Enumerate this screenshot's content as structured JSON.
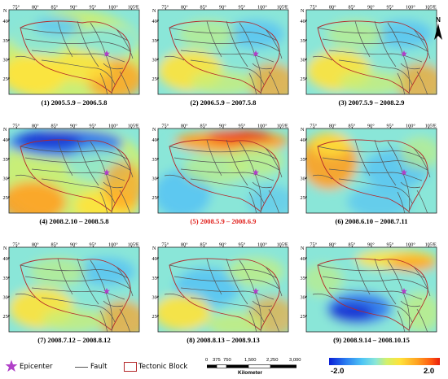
{
  "compass_letter": "N",
  "axes": {
    "lon_ticks": [
      "75°",
      "80°",
      "85°",
      "90°",
      "95°",
      "100°",
      "105°"
    ],
    "lon_suffix": "E",
    "lat_ticks": [
      "40°",
      "35°",
      "30°",
      "25°"
    ],
    "lat_top": "N"
  },
  "panels": [
    {
      "caption": "(1) 2005.5.9 – 2006.5.8",
      "highlight": false,
      "anomaly": "mixed-positive"
    },
    {
      "caption": "(2) 2006.5.9 – 2007.5.8",
      "highlight": false,
      "anomaly": "mixed"
    },
    {
      "caption": "(3) 2007.5.9 – 2008.2.9",
      "highlight": false,
      "anomaly": "mixed"
    },
    {
      "caption": "(4) 2008.2.10 – 2008.5.8",
      "highlight": false,
      "anomaly": "north-negative"
    },
    {
      "caption": "(5) 2008.5.9 – 2008.6.9",
      "highlight": true,
      "anomaly": "north-positive"
    },
    {
      "caption": "(6) 2008.6.10 – 2008.7.11",
      "highlight": false,
      "anomaly": "west-positive"
    },
    {
      "caption": "(7) 2008.7.12 – 2008.8.12",
      "highlight": false,
      "anomaly": "mixed"
    },
    {
      "caption": "(8) 2008.8.13 – 2008.9.13",
      "highlight": false,
      "anomaly": "mixed-negative"
    },
    {
      "caption": "(9) 2008.9.14 – 2008.10.15",
      "highlight": false,
      "anomaly": "center-negative"
    }
  ],
  "legend": {
    "epicenter_label": "Epicenter",
    "fault_label": "Fault",
    "block_label": "Tectonic Block",
    "scale_ticks": [
      "0",
      "375",
      "750",
      "1,500",
      "2,250",
      "3,000"
    ],
    "scale_unit": "Kilometer",
    "colorbar_min": "-2.0",
    "colorbar_max": "2.0"
  },
  "colors": {
    "epicenter": "#b040c8",
    "fault": "#555555",
    "block": "#b4282a",
    "highlight_caption": "#e0201c"
  }
}
